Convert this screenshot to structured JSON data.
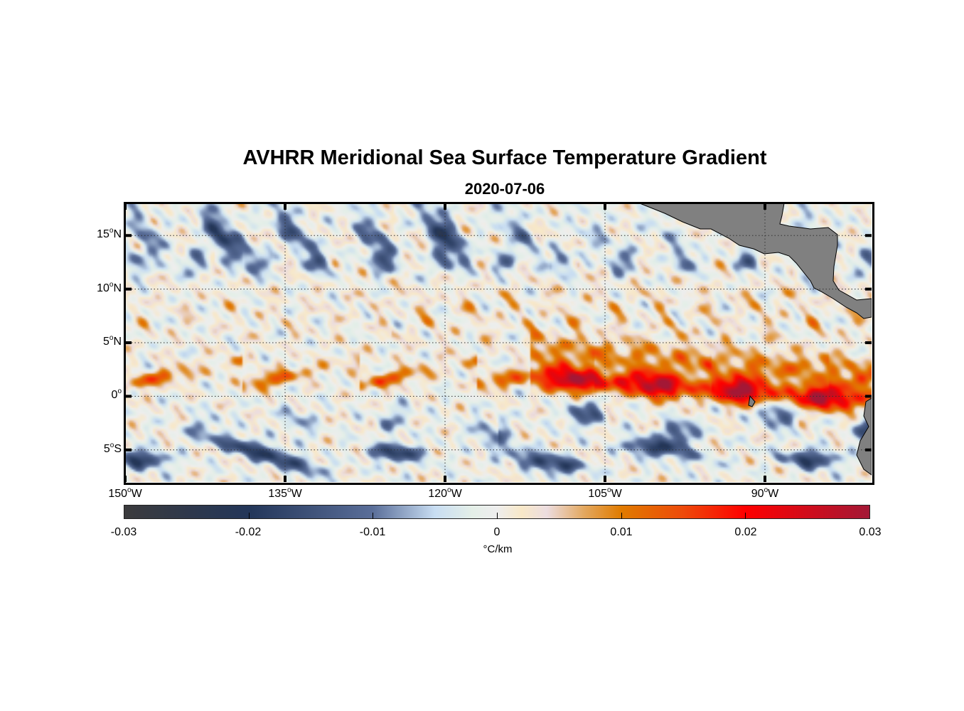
{
  "chart_data": {
    "type": "heatmap",
    "title": "AVHRR Meridional Sea Surface Temperature Gradient",
    "subtitle": "2020-07-06",
    "deg_symbol": "o",
    "lon_range": [
      -150,
      -80
    ],
    "lat_range": [
      -8,
      18
    ],
    "y_ticks": [
      {
        "value": 15,
        "num": "15",
        "hemi": "N"
      },
      {
        "value": 10,
        "num": "10",
        "hemi": "N"
      },
      {
        "value": 5,
        "num": "5",
        "hemi": "N"
      },
      {
        "value": 0,
        "num": "0",
        "hemi": ""
      },
      {
        "value": -5,
        "num": "5",
        "hemi": "S"
      }
    ],
    "x_ticks": [
      {
        "value": -150,
        "num": "150",
        "hemi": "W"
      },
      {
        "value": -135,
        "num": "135",
        "hemi": "W"
      },
      {
        "value": -120,
        "num": "120",
        "hemi": "W"
      },
      {
        "value": -105,
        "num": "105",
        "hemi": "W"
      },
      {
        "value": -90,
        "num": "90",
        "hemi": "W"
      }
    ],
    "grid": "dotted",
    "land_color": "#808080",
    "colorbar": {
      "range": [
        -0.03,
        0.03
      ],
      "ticks": [
        {
          "value": -0.03,
          "label": "-0.03"
        },
        {
          "value": -0.02,
          "label": "-0.02"
        },
        {
          "value": -0.01,
          "label": "-0.01"
        },
        {
          "value": 0,
          "label": "0"
        },
        {
          "value": 0.01,
          "label": "0.01"
        },
        {
          "value": 0.02,
          "label": "0.02"
        },
        {
          "value": 0.03,
          "label": "0.03"
        }
      ],
      "unit": "°C/km",
      "placement": "bottom",
      "colormap": [
        [
          -0.03,
          "#3b3b3d"
        ],
        [
          -0.02,
          "#233659"
        ],
        [
          -0.01,
          "#5a6e99"
        ],
        [
          -0.005,
          "#c8ddf2"
        ],
        [
          -0.002,
          "#e4efe8"
        ],
        [
          0,
          "#eeeeee"
        ],
        [
          0.002,
          "#f8e8c8"
        ],
        [
          0.004,
          "#ecdde0"
        ],
        [
          0.007,
          "#e3a860"
        ],
        [
          0.01,
          "#e07b00"
        ],
        [
          0.015,
          "#ed4a0a"
        ],
        [
          0.02,
          "#fe0000"
        ],
        [
          0.03,
          "#a31836"
        ]
      ]
    }
  }
}
